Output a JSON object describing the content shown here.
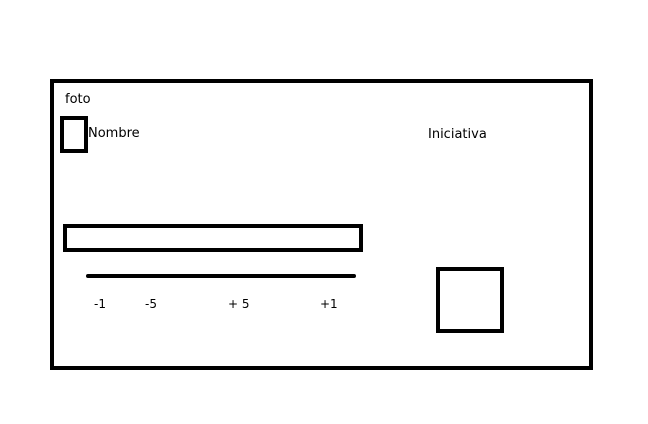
{
  "card": {
    "photo_label": "foto",
    "name_label": "Nombre",
    "initiative_label": "Iniciativa",
    "slider_ticks": [
      "-1",
      "-5",
      "+ 5",
      "+1"
    ]
  },
  "colors": {
    "stroke": "#000000",
    "background": "#ffffff"
  }
}
